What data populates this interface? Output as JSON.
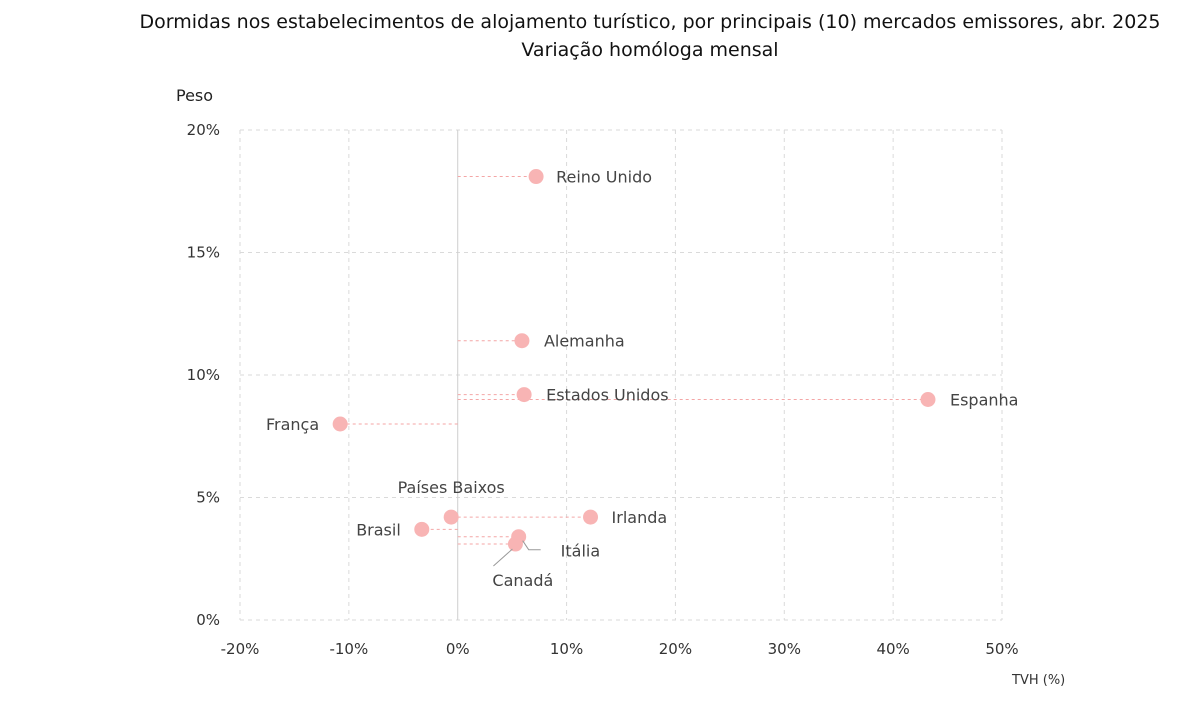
{
  "chart_data": {
    "type": "scatter",
    "title": "Dormidas nos estabelecimentos de alojamento turístico, por principais (10) mercados emissores, abr. 2025",
    "subtitle": "Variação homóloga mensal",
    "xlabel": "TVH (%)",
    "ylabel": "Peso",
    "xlim": [
      -20,
      50
    ],
    "ylim": [
      0,
      20
    ],
    "x_ticks": [
      "-20%",
      "-10%",
      "0%",
      "10%",
      "20%",
      "30%",
      "40%",
      "50%"
    ],
    "y_ticks": [
      "0%",
      "5%",
      "10%",
      "15%",
      "20%"
    ],
    "grid": true,
    "marker_color": "#f8b4b4",
    "leader_color": "#f4a6a6",
    "points": [
      {
        "name": "Reino Unido",
        "x": 7.2,
        "y": 18.1
      },
      {
        "name": "Alemanha",
        "x": 5.9,
        "y": 11.4
      },
      {
        "name": "Estados Unidos",
        "x": 6.1,
        "y": 9.2
      },
      {
        "name": "Espanha",
        "x": 43.2,
        "y": 9.0
      },
      {
        "name": "França",
        "x": -10.8,
        "y": 8.0
      },
      {
        "name": "Países Baixos",
        "x": -0.6,
        "y": 4.2
      },
      {
        "name": "Irlanda",
        "x": 12.2,
        "y": 4.2
      },
      {
        "name": "Brasil",
        "x": -3.3,
        "y": 3.7
      },
      {
        "name": "Itália",
        "x": 5.6,
        "y": 3.4
      },
      {
        "name": "Canadá",
        "x": 5.3,
        "y": 3.1
      }
    ]
  }
}
